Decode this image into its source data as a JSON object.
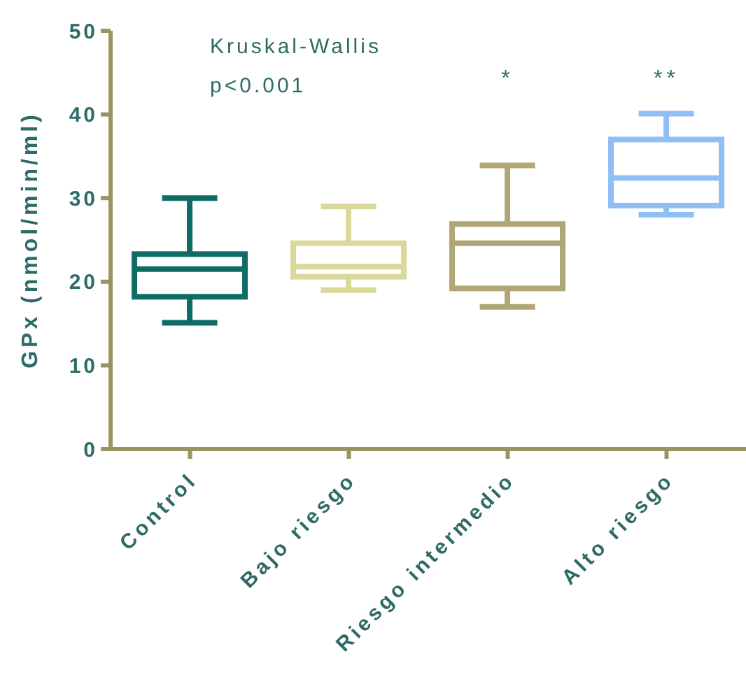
{
  "chart_data": {
    "type": "box",
    "ylabel": "GPx (nmol/min/ml)",
    "categories": [
      "Control",
      "Bajo riesgo",
      "Riesgo intermedio",
      "Alto riesgo"
    ],
    "boxes": [
      {
        "low": 15.1,
        "q1": 18.2,
        "median": 21.5,
        "q3": 23.3,
        "high": 30
      },
      {
        "low": 19,
        "q1": 20.6,
        "median": 21.8,
        "q3": 24.6,
        "high": 29
      },
      {
        "low": 17,
        "q1": 19.2,
        "median": 24.6,
        "q3": 26.9,
        "high": 33.9
      },
      {
        "low": 28,
        "q1": 29.1,
        "median": 32.4,
        "q3": 37,
        "high": 40.1
      }
    ],
    "colors": [
      "#0f6b66",
      "#d9d99a",
      "#b1a676",
      "#90bff5"
    ],
    "ylim": [
      0,
      50
    ],
    "yticks": [
      0,
      10,
      20,
      30,
      40,
      50
    ],
    "grid": false,
    "legend": false,
    "annotations": [
      "Kruskal-Wallis",
      "p<0.001",
      "*",
      "**"
    ]
  }
}
